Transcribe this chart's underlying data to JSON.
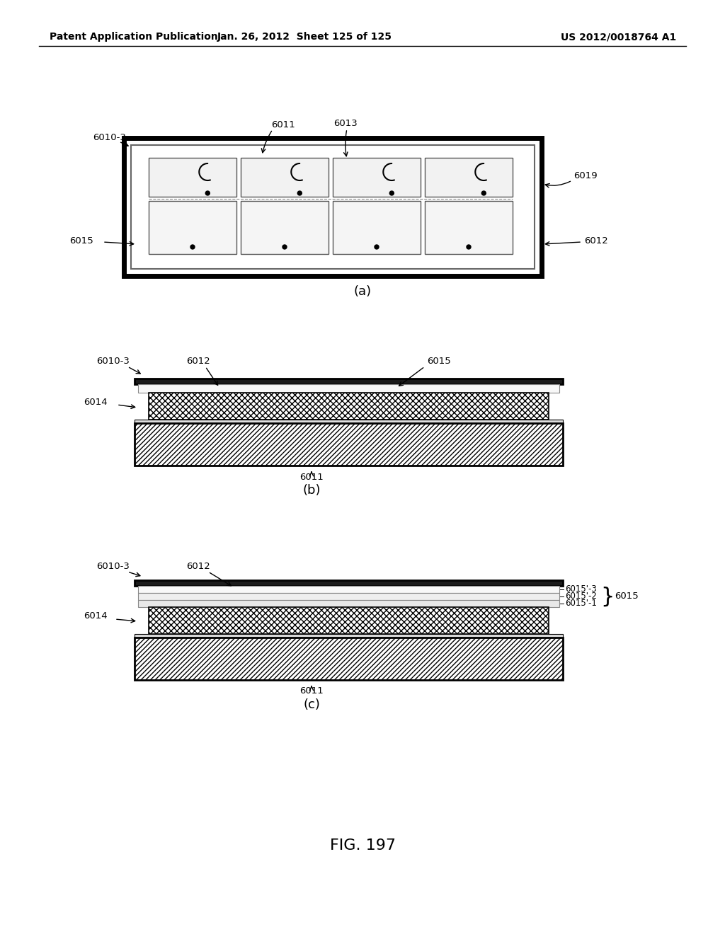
{
  "bg_color": "#ffffff",
  "header_left": "Patent Application Publication",
  "header_mid": "Jan. 26, 2012  Sheet 125 of 125",
  "header_right": "US 2012/0018764 A1",
  "fig_label": "FIG. 197",
  "diagram_a_label": "(a)",
  "diagram_b_label": "(b)",
  "diagram_c_label": "(c)"
}
